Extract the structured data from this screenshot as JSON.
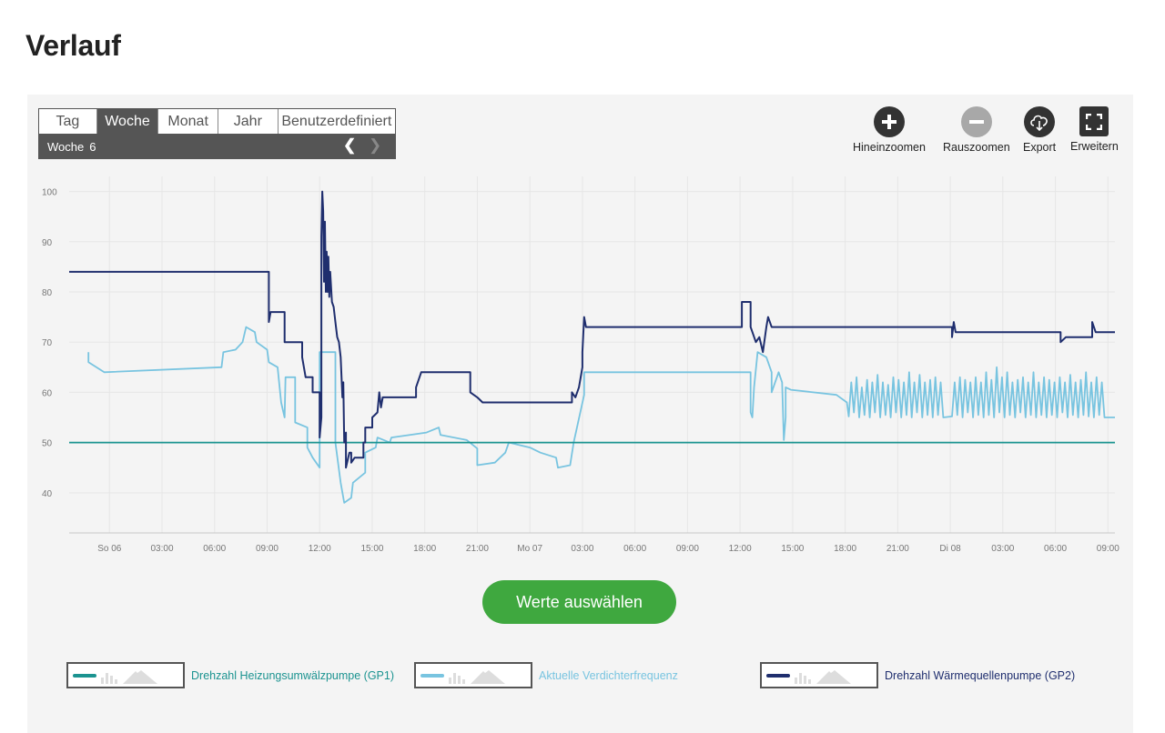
{
  "page": {
    "title": "Verlauf"
  },
  "tabs": [
    "Tag",
    "Woche",
    "Monat",
    "Jahr",
    "Benutzerdefiniert"
  ],
  "active_tab": "Woche",
  "period": {
    "label": "Woche",
    "number": "6"
  },
  "toolbar": {
    "zoom_in": "Hineinzoomen",
    "zoom_out": "Rauszoomen",
    "export": "Export",
    "expand": "Erweitern"
  },
  "select_button": "Werte auswählen",
  "colors": {
    "gp1": "#1b9390",
    "compressor": "#78c4e0",
    "gp2": "#1f2e6e",
    "button": "#3fa83f",
    "grid": "#e6e6e6"
  },
  "legend": [
    {
      "label": "Drehzahl Heizungsumwälzpumpe (GP1)",
      "color": "#1b9390"
    },
    {
      "label": "Aktuelle Verdichterfrequenz",
      "color": "#78c4e0"
    },
    {
      "label": "Drehzahl Wärmequellenpumpe (GP2)",
      "color": "#1f2e6e"
    }
  ],
  "chart_data": {
    "type": "line",
    "x_unit": "hours since So 06 00:00",
    "x_range": [
      -2.3,
      57.4
    ],
    "ylim": [
      32,
      103
    ],
    "y_ticks": [
      40,
      50,
      60,
      70,
      80,
      90,
      100
    ],
    "x_ticks": [
      {
        "x": 0,
        "label": "So 06"
      },
      {
        "x": 3,
        "label": "03:00"
      },
      {
        "x": 6,
        "label": "06:00"
      },
      {
        "x": 9,
        "label": "09:00"
      },
      {
        "x": 12,
        "label": "12:00"
      },
      {
        "x": 15,
        "label": "15:00"
      },
      {
        "x": 18,
        "label": "18:00"
      },
      {
        "x": 21,
        "label": "21:00"
      },
      {
        "x": 24,
        "label": "Mo 07"
      },
      {
        "x": 27,
        "label": "03:00"
      },
      {
        "x": 30,
        "label": "06:00"
      },
      {
        "x": 33,
        "label": "09:00"
      },
      {
        "x": 36,
        "label": "12:00"
      },
      {
        "x": 39,
        "label": "15:00"
      },
      {
        "x": 42,
        "label": "18:00"
      },
      {
        "x": 45,
        "label": "21:00"
      },
      {
        "x": 48,
        "label": "Di 08"
      },
      {
        "x": 51,
        "label": "03:00"
      },
      {
        "x": 54,
        "label": "06:00"
      },
      {
        "x": 57,
        "label": "09:00"
      }
    ],
    "grid": true,
    "series": [
      {
        "name": "Drehzahl Heizungsumwälzpumpe (GP1)",
        "color": "#1b9390",
        "points": [
          [
            -2.3,
            50
          ],
          [
            57.4,
            50
          ]
        ]
      },
      {
        "name": "Aktuelle Verdichterfrequenz",
        "color": "#78c4e0",
        "points": [
          [
            -1.2,
            68
          ],
          [
            -1.2,
            66
          ],
          [
            -0.3,
            64
          ],
          [
            6.4,
            65
          ],
          [
            6.5,
            68
          ],
          [
            7.2,
            68.5
          ],
          [
            7.6,
            70
          ],
          [
            7.8,
            73
          ],
          [
            8.3,
            72
          ],
          [
            8.4,
            70
          ],
          [
            9.0,
            68.5
          ],
          [
            9.1,
            66
          ],
          [
            9.6,
            65
          ],
          [
            9.8,
            58
          ],
          [
            10.0,
            55
          ],
          [
            10.05,
            63
          ],
          [
            10.6,
            63
          ],
          [
            10.6,
            54
          ],
          [
            11.3,
            53
          ],
          [
            11.3,
            49
          ],
          [
            11.6,
            47
          ],
          [
            12.0,
            45
          ],
          [
            12.0,
            68
          ],
          [
            12.9,
            68
          ],
          [
            12.9,
            50
          ],
          [
            13.2,
            42
          ],
          [
            13.4,
            38
          ],
          [
            13.8,
            39
          ],
          [
            13.9,
            42
          ],
          [
            14.6,
            44
          ],
          [
            14.6,
            48
          ],
          [
            15.2,
            49
          ],
          [
            15.3,
            51
          ],
          [
            16.0,
            50
          ],
          [
            16.1,
            51
          ],
          [
            18.1,
            52
          ],
          [
            18.8,
            53
          ],
          [
            18.9,
            51.5
          ],
          [
            20.4,
            50.5
          ],
          [
            21.0,
            48.8
          ],
          [
            21.0,
            45.5
          ],
          [
            22.0,
            46
          ],
          [
            22.6,
            48
          ],
          [
            22.8,
            50
          ],
          [
            24.0,
            49
          ],
          [
            24.6,
            48
          ],
          [
            25.5,
            47
          ],
          [
            25.6,
            45
          ],
          [
            26.3,
            45.5
          ],
          [
            26.5,
            50
          ],
          [
            27.1,
            59.5
          ],
          [
            27.1,
            64
          ],
          [
            36.6,
            64
          ],
          [
            36.6,
            56
          ],
          [
            36.7,
            55
          ],
          [
            36.8,
            61
          ],
          [
            37.0,
            68
          ],
          [
            37.5,
            67
          ],
          [
            37.8,
            64
          ],
          [
            37.8,
            60
          ],
          [
            38.2,
            64
          ],
          [
            38.4,
            62
          ],
          [
            38.5,
            50.5
          ],
          [
            38.6,
            55
          ],
          [
            38.6,
            61
          ],
          [
            38.9,
            60.5
          ],
          [
            41.5,
            59.5
          ],
          [
            42.1,
            58
          ],
          [
            42.2,
            55.2
          ],
          [
            42.35,
            62
          ],
          [
            42.5,
            56
          ],
          [
            42.65,
            63
          ],
          [
            42.8,
            55
          ],
          [
            42.95,
            61
          ],
          [
            43.1,
            55.5
          ],
          [
            43.25,
            62.5
          ],
          [
            43.4,
            55
          ],
          [
            43.55,
            62
          ],
          [
            43.7,
            56
          ],
          [
            43.85,
            63.5
          ],
          [
            44.0,
            55
          ],
          [
            44.15,
            62
          ],
          [
            44.3,
            55.5
          ],
          [
            44.45,
            61.5
          ],
          [
            44.6,
            55
          ],
          [
            44.75,
            63
          ],
          [
            44.9,
            56
          ],
          [
            45.05,
            62.5
          ],
          [
            45.2,
            55
          ],
          [
            45.35,
            62
          ],
          [
            45.5,
            55.5
          ],
          [
            45.65,
            64
          ],
          [
            45.8,
            55
          ],
          [
            45.95,
            62
          ],
          [
            46.1,
            56
          ],
          [
            46.25,
            63.5
          ],
          [
            46.4,
            55
          ],
          [
            46.55,
            62
          ],
          [
            46.7,
            55.5
          ],
          [
            46.85,
            62.5
          ],
          [
            47.0,
            55
          ],
          [
            47.15,
            63
          ],
          [
            47.3,
            55.5
          ],
          [
            47.45,
            62
          ],
          [
            47.6,
            55
          ],
          [
            48.1,
            55.2
          ],
          [
            48.25,
            62
          ],
          [
            48.4,
            55.5
          ],
          [
            48.55,
            63
          ],
          [
            48.7,
            55
          ],
          [
            48.85,
            62.5
          ],
          [
            49.0,
            56
          ],
          [
            49.15,
            62
          ],
          [
            49.3,
            55
          ],
          [
            49.45,
            63
          ],
          [
            49.6,
            55.5
          ],
          [
            49.75,
            62
          ],
          [
            49.9,
            55
          ],
          [
            50.05,
            64
          ],
          [
            50.2,
            55.5
          ],
          [
            50.35,
            62.5
          ],
          [
            50.5,
            55
          ],
          [
            50.65,
            65
          ],
          [
            50.8,
            56
          ],
          [
            50.95,
            63
          ],
          [
            51.1,
            55
          ],
          [
            51.25,
            64
          ],
          [
            51.4,
            55.5
          ],
          [
            51.55,
            62
          ],
          [
            51.7,
            55
          ],
          [
            51.85,
            62.5
          ],
          [
            52.0,
            56
          ],
          [
            52.15,
            63
          ],
          [
            52.3,
            55
          ],
          [
            52.45,
            62
          ],
          [
            52.6,
            55.5
          ],
          [
            52.75,
            64
          ],
          [
            52.9,
            55
          ],
          [
            53.05,
            62
          ],
          [
            53.2,
            55.5
          ],
          [
            53.35,
            63
          ],
          [
            53.5,
            55
          ],
          [
            53.65,
            62.5
          ],
          [
            53.8,
            55.5
          ],
          [
            53.95,
            62
          ],
          [
            54.1,
            55
          ],
          [
            54.25,
            63
          ],
          [
            54.4,
            56
          ],
          [
            54.55,
            62
          ],
          [
            54.7,
            55
          ],
          [
            54.85,
            63.5
          ],
          [
            55.0,
            55.5
          ],
          [
            55.15,
            62
          ],
          [
            55.3,
            55
          ],
          [
            55.45,
            62.5
          ],
          [
            55.6,
            55.5
          ],
          [
            55.75,
            64
          ],
          [
            55.9,
            55.2
          ],
          [
            56.05,
            62
          ],
          [
            56.2,
            55
          ],
          [
            56.35,
            63
          ],
          [
            56.5,
            55.5
          ],
          [
            56.65,
            62
          ],
          [
            56.8,
            55
          ],
          [
            57.4,
            55
          ]
        ]
      },
      {
        "name": "Drehzahl Wärmequellenpumpe (GP2)",
        "color": "#1f2e6e",
        "points": [
          [
            -2.3,
            84
          ],
          [
            9.1,
            84
          ],
          [
            9.1,
            74
          ],
          [
            9.2,
            76
          ],
          [
            10.0,
            76
          ],
          [
            10.0,
            70
          ],
          [
            11.0,
            70
          ],
          [
            11.0,
            67
          ],
          [
            11.2,
            63
          ],
          [
            11.6,
            63
          ],
          [
            11.6,
            60
          ],
          [
            12.0,
            60
          ],
          [
            12.0,
            51
          ],
          [
            12.1,
            55
          ],
          [
            12.1,
            91
          ],
          [
            12.15,
            100
          ],
          [
            12.2,
            96
          ],
          [
            12.25,
            82
          ],
          [
            12.3,
            94
          ],
          [
            12.35,
            80
          ],
          [
            12.4,
            88
          ],
          [
            12.45,
            80
          ],
          [
            12.5,
            87
          ],
          [
            12.55,
            79
          ],
          [
            12.6,
            84
          ],
          [
            12.7,
            78
          ],
          [
            12.8,
            77
          ],
          [
            12.9,
            74
          ],
          [
            13.0,
            71
          ],
          [
            13.1,
            70
          ],
          [
            13.2,
            67
          ],
          [
            13.3,
            59
          ],
          [
            13.35,
            62
          ],
          [
            13.4,
            50
          ],
          [
            13.5,
            52
          ],
          [
            13.5,
            45
          ],
          [
            13.7,
            48
          ],
          [
            13.8,
            48
          ],
          [
            13.8,
            46
          ],
          [
            14.0,
            47
          ],
          [
            14.5,
            47
          ],
          [
            14.5,
            50
          ],
          [
            14.6,
            50
          ],
          [
            14.6,
            53
          ],
          [
            15.0,
            53
          ],
          [
            15.0,
            55
          ],
          [
            15.3,
            56
          ],
          [
            15.4,
            60
          ],
          [
            15.5,
            57
          ],
          [
            15.6,
            59
          ],
          [
            17.5,
            59
          ],
          [
            17.5,
            61
          ],
          [
            17.8,
            64
          ],
          [
            20.6,
            64
          ],
          [
            20.6,
            60
          ],
          [
            21.0,
            59
          ],
          [
            21.3,
            58
          ],
          [
            26.4,
            58
          ],
          [
            26.4,
            60
          ],
          [
            26.6,
            59
          ],
          [
            26.8,
            61
          ],
          [
            27.0,
            65
          ],
          [
            27.0,
            68
          ],
          [
            27.1,
            75
          ],
          [
            27.2,
            73
          ],
          [
            36.1,
            73
          ],
          [
            36.1,
            78
          ],
          [
            36.6,
            78
          ],
          [
            36.6,
            73
          ],
          [
            36.9,
            70
          ],
          [
            37.1,
            71
          ],
          [
            37.3,
            68
          ],
          [
            37.5,
            73
          ],
          [
            37.6,
            75
          ],
          [
            37.8,
            73
          ],
          [
            48.1,
            73
          ],
          [
            48.1,
            71
          ],
          [
            48.2,
            74
          ],
          [
            48.3,
            72
          ],
          [
            54.3,
            72
          ],
          [
            54.3,
            70
          ],
          [
            54.6,
            71
          ],
          [
            56.1,
            71
          ],
          [
            56.1,
            74
          ],
          [
            56.3,
            72
          ],
          [
            57.4,
            72
          ]
        ]
      }
    ]
  }
}
